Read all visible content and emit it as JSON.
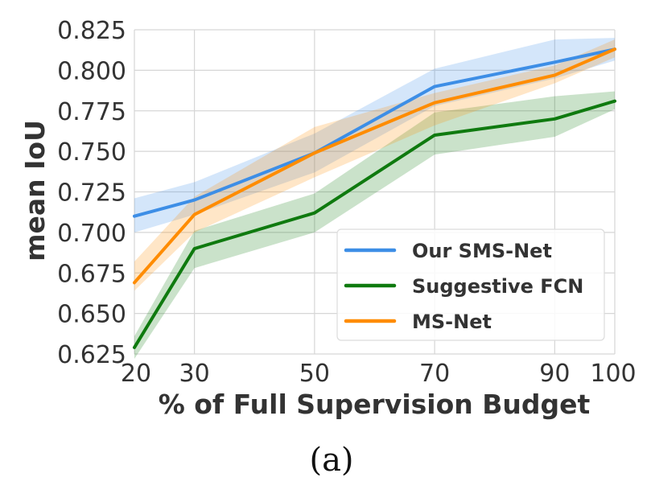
{
  "chart_data": {
    "type": "line",
    "xlabel": "% of Full Supervision Budget",
    "ylabel": "mean IoU",
    "caption": "(a)",
    "x": [
      20,
      30,
      50,
      70,
      90,
      100
    ],
    "x_tick_labels": [
      "20",
      "30",
      "50",
      "70",
      "90",
      "100"
    ],
    "y_ticks": [
      0.625,
      0.65,
      0.675,
      0.7,
      0.725,
      0.75,
      0.775,
      0.8,
      0.825
    ],
    "y_tick_labels": [
      "0.625",
      "0.650",
      "0.675",
      "0.700",
      "0.725",
      "0.750",
      "0.775",
      "0.800",
      "0.825"
    ],
    "xlim": [
      20,
      100
    ],
    "ylim": [
      0.625,
      0.825
    ],
    "grid": true,
    "legend_position": "lower-right",
    "series": [
      {
        "name": "Our SMS-Net",
        "color": "#3d8ee6",
        "values": [
          0.71,
          0.72,
          0.749,
          0.79,
          0.805,
          0.813
        ],
        "band_low": [
          0.7,
          0.711,
          0.737,
          0.778,
          0.795,
          0.806
        ],
        "band_high": [
          0.721,
          0.731,
          0.761,
          0.801,
          0.819,
          0.82
        ]
      },
      {
        "name": "Suggestive FCN",
        "color": "#0f7a0f",
        "values": [
          0.629,
          0.69,
          0.712,
          0.76,
          0.77,
          0.781
        ],
        "band_low": [
          0.622,
          0.678,
          0.7,
          0.748,
          0.759,
          0.776
        ],
        "band_high": [
          0.636,
          0.701,
          0.724,
          0.774,
          0.784,
          0.787
        ]
      },
      {
        "name": "MS-Net",
        "color": "#ff8c00",
        "values": [
          0.669,
          0.711,
          0.749,
          0.78,
          0.797,
          0.813
        ],
        "band_low": [
          0.664,
          0.7,
          0.734,
          0.766,
          0.792,
          0.808
        ],
        "band_high": [
          0.682,
          0.722,
          0.765,
          0.786,
          0.803,
          0.819
        ]
      }
    ]
  }
}
